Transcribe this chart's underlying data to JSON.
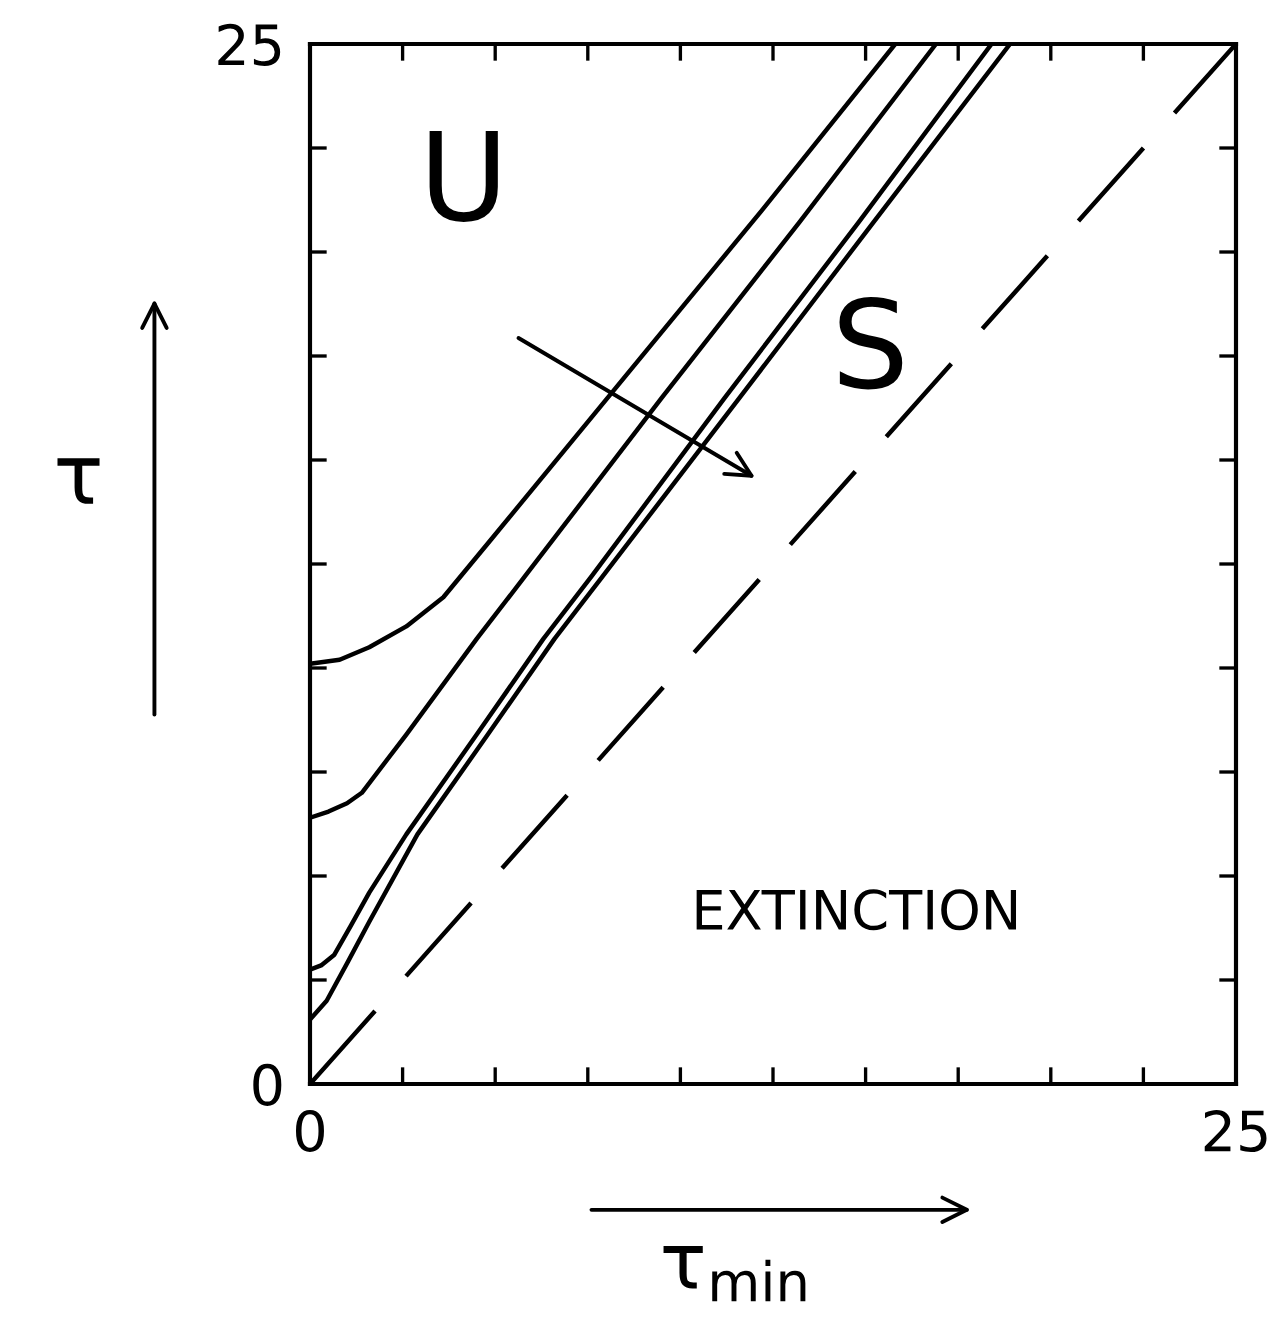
{
  "chart_data": {
    "type": "line",
    "xlabel": "τ$_{min}$",
    "ylabel": "τ",
    "xlim": [
      0,
      25
    ],
    "ylim": [
      0,
      25
    ],
    "xticks": [
      0,
      {
        "value": 2.5,
        "label": null
      },
      {
        "value": 5,
        "label": null
      },
      {
        "value": 7.5,
        "label": null
      },
      {
        "value": 10,
        "label": null
      },
      {
        "value": 12.5,
        "label": null
      },
      {
        "value": 15,
        "label": null
      },
      {
        "value": 17.5,
        "label": null
      },
      {
        "value": 20,
        "label": null
      },
      {
        "value": 22.5,
        "label": null
      },
      25
    ],
    "yticks": [
      0,
      {
        "value": 2.5,
        "label": null
      },
      {
        "value": 5,
        "label": null
      },
      {
        "value": 7.5,
        "label": null
      },
      {
        "value": 10,
        "label": null
      },
      {
        "value": 12.5,
        "label": null
      },
      {
        "value": 15,
        "label": null
      },
      {
        "value": 17.5,
        "label": null
      },
      {
        "value": 20,
        "label": null
      },
      {
        "value": 22.5,
        "label": null
      },
      25
    ],
    "series": [
      {
        "color": "#000000",
        "x": [
          0,
          0.8,
          1.6,
          2.6,
          3.6,
          4.9,
          8.5,
          12.2,
          15.8
        ],
        "values": [
          10.1,
          10.2,
          10.5,
          11.0,
          11.7,
          13.1,
          17.0,
          21.0,
          25
        ]
      },
      {
        "color": "#000000",
        "x": [
          0,
          0.5,
          1.0,
          1.4,
          2.6,
          4.5,
          5.8,
          9.5,
          13.2,
          16.9
        ],
        "values": [
          6.4,
          6.55,
          6.75,
          7.0,
          8.4,
          10.7,
          12.2,
          16.5,
          20.7,
          25
        ]
      },
      {
        "color": "#000000",
        "x": [
          0,
          0.3,
          0.65,
          1.1,
          1.6,
          2.6,
          4.5,
          6.3,
          7.6,
          11.2,
          14.8,
          18.4
        ],
        "values": [
          2.75,
          2.85,
          3.1,
          3.8,
          4.6,
          6.0,
          8.4,
          10.7,
          12.2,
          16.5,
          20.7,
          25
        ]
      },
      {
        "color": "#000000",
        "x": [
          0,
          0.45,
          1.0,
          1.6,
          2.9,
          4.8,
          6.6,
          7.9,
          11.6,
          15.2,
          18.9
        ],
        "values": [
          1.55,
          2.0,
          2.9,
          3.9,
          6.0,
          8.4,
          10.7,
          12.2,
          16.5,
          20.7,
          25
        ]
      },
      {
        "color": "#000000",
        "x": [
          0,
          25
        ],
        "values": [
          0,
          25
        ],
        "line_style": "dashed"
      }
    ],
    "annotations": [
      "U",
      "S",
      "EXTINCTION"
    ]
  }
}
